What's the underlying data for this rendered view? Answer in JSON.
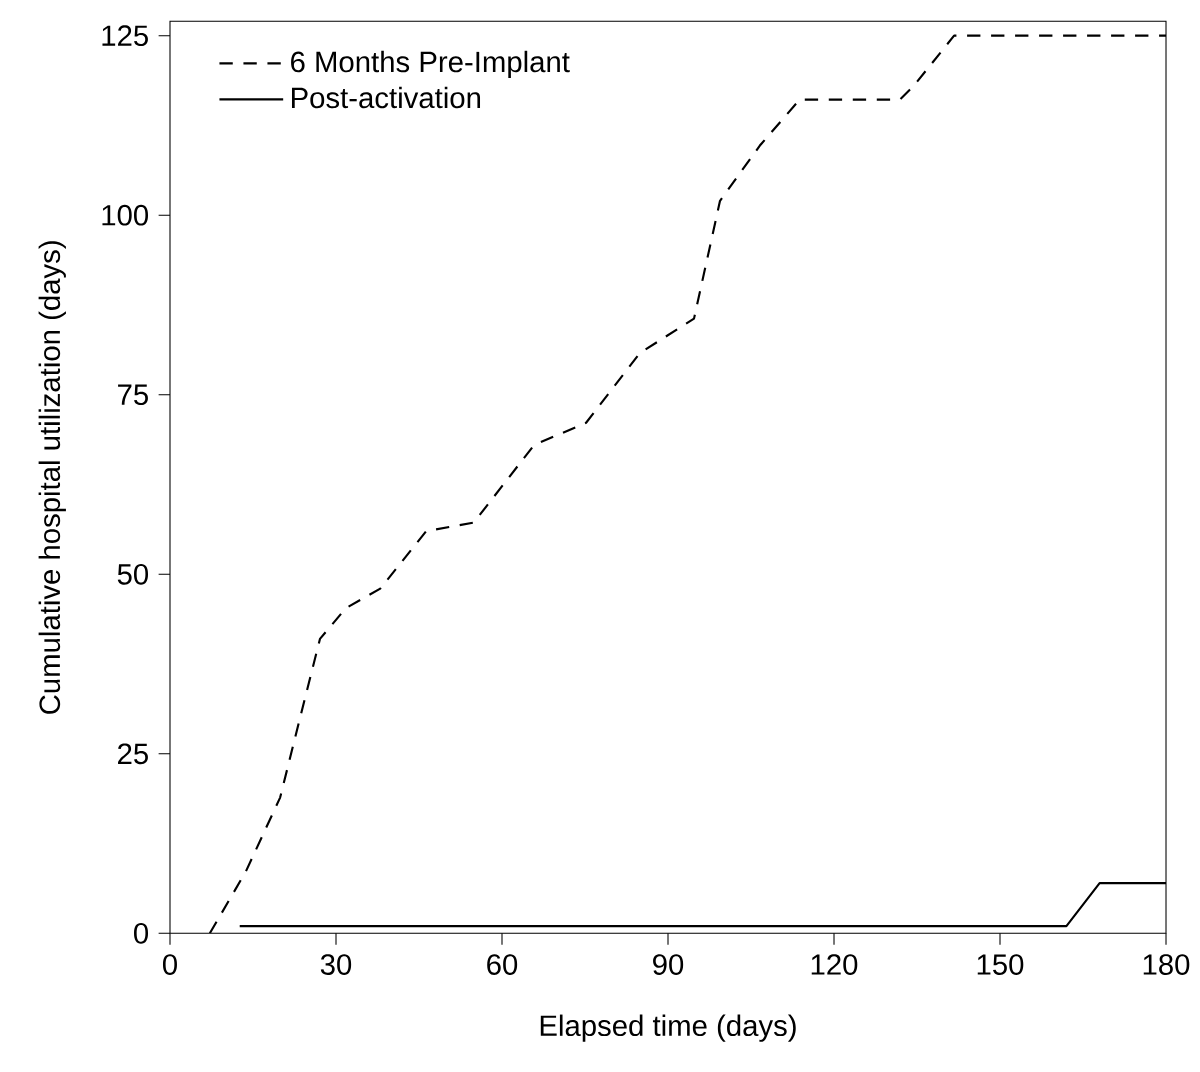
{
  "chart_data": {
    "type": "line",
    "xlabel": "Elapsed time (days)",
    "ylabel": "Cumulative hospital utilization (days)",
    "xlim": [
      0,
      180
    ],
    "ylim": [
      0,
      127
    ],
    "xticks": [
      0,
      30,
      60,
      90,
      120,
      150,
      180
    ],
    "yticks": [
      0,
      25,
      50,
      75,
      100,
      125
    ],
    "legend": "top left",
    "grid": false,
    "marker": "none",
    "series": [
      {
        "name": "6 Months Pre-Implant",
        "color": "#000000",
        "line_style": "dashed",
        "x": [
          7.2,
          13.7,
          19.9,
          23.5,
          27.1,
          31.8,
          38,
          46.3,
          54.9,
          65.8,
          75.2,
          84.9,
          94.7,
          99.4,
          106.6,
          113.8,
          131.9,
          134.4,
          141.7,
          180
        ],
        "values": [
          0,
          8.6,
          18.9,
          30,
          41,
          45.3,
          48,
          56,
          57.2,
          68,
          71.1,
          80.8,
          85.6,
          102,
          109.7,
          116.1,
          116.1,
          118,
          125,
          125
        ]
      },
      {
        "name": "Post-activation",
        "color": "#000000",
        "line_style": "solid",
        "x": [
          12.6,
          162,
          168,
          180
        ],
        "values": [
          1,
          1,
          7,
          7
        ]
      }
    ]
  }
}
